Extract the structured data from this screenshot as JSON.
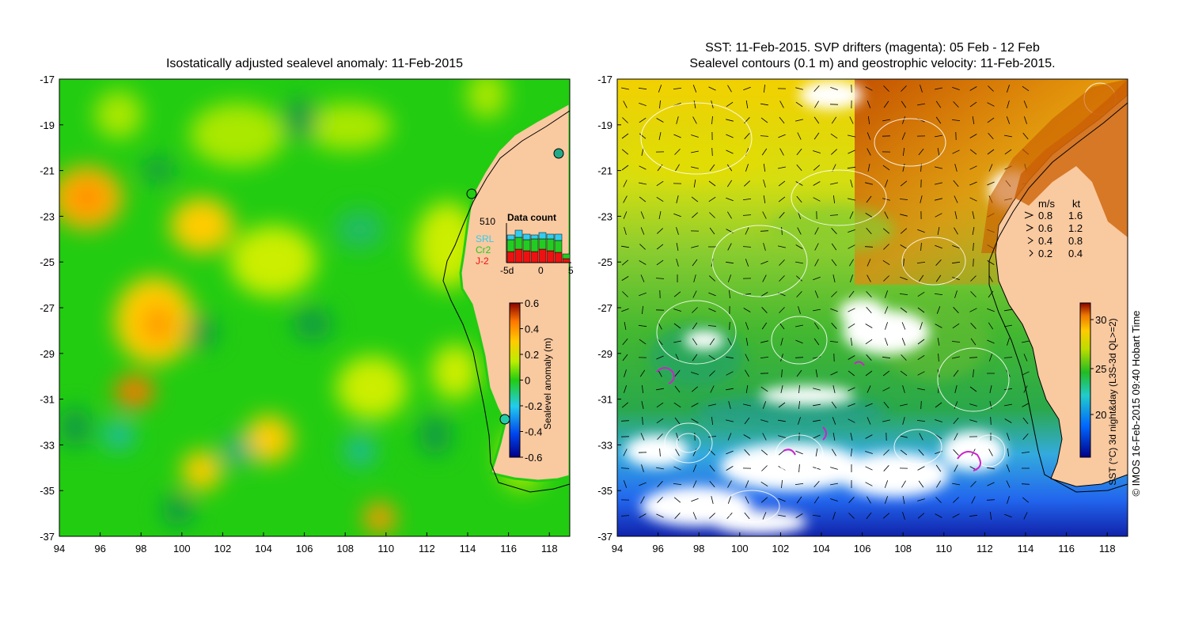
{
  "left_panel": {
    "title": "Isostatically adjusted sealevel anomaly: 11-Feb-2015",
    "x_ticks": [
      "94",
      "96",
      "98",
      "100",
      "102",
      "104",
      "106",
      "108",
      "110",
      "112",
      "114",
      "116",
      "118"
    ],
    "y_ticks": [
      "-17",
      "-19",
      "-21",
      "-23",
      "-25",
      "-27",
      "-29",
      "-31",
      "-33",
      "-35",
      "-37"
    ],
    "colorbar": {
      "label": "Sealevel anomaly (m)",
      "ticks": [
        "0.6",
        "0.4",
        "0.2",
        "0",
        "-0.2",
        "-0.4",
        "-0.6"
      ]
    },
    "data_count": {
      "title": "Data count",
      "max_label": "510",
      "x_ticks": [
        "-5d",
        "0",
        "5"
      ],
      "legend": [
        {
          "name": "SRL",
          "color": "#33ccee"
        },
        {
          "name": "Cr2",
          "color": "#22cc22"
        },
        {
          "name": "J-2",
          "color": "#ee1111"
        }
      ],
      "bars": [
        {
          "j2": 0.28,
          "cr2": 0.3,
          "srl": 0.12
        },
        {
          "j2": 0.34,
          "cr2": 0.3,
          "srl": 0.18
        },
        {
          "j2": 0.3,
          "cr2": 0.28,
          "srl": 0.14
        },
        {
          "j2": 0.28,
          "cr2": 0.32,
          "srl": 0.1
        },
        {
          "j2": 0.34,
          "cr2": 0.26,
          "srl": 0.16
        },
        {
          "j2": 0.3,
          "cr2": 0.3,
          "srl": 0.12
        },
        {
          "j2": 0.26,
          "cr2": 0.3,
          "srl": 0.16
        },
        {
          "j2": 0.1,
          "cr2": 0.12,
          "srl": 0.0
        }
      ]
    }
  },
  "right_panel": {
    "title_line1": "SST: 11-Feb-2015. SVP drifters (magenta): 05 Feb - 12 Feb",
    "title_line2": "Sealevel contours (0.1 m) and geostrophic velocity: 11-Feb-2015.",
    "x_ticks": [
      "94",
      "96",
      "98",
      "100",
      "102",
      "104",
      "106",
      "108",
      "110",
      "112",
      "114",
      "116",
      "118"
    ],
    "y_ticks": [
      "-17",
      "-19",
      "-21",
      "-23",
      "-25",
      "-27",
      "-29",
      "-31",
      "-33",
      "-35",
      "-37"
    ],
    "velocity_legend": {
      "header_ms": "m/s",
      "header_kt": "kt",
      "rows": [
        {
          "ms": "0.8",
          "kt": "1.6"
        },
        {
          "ms": "0.6",
          "kt": "1.2"
        },
        {
          "ms": "0.4",
          "kt": "0.8"
        },
        {
          "ms": "0.2",
          "kt": "0.4"
        }
      ]
    },
    "colorbar": {
      "label": "SST (°C) 3d night&day (L3S-3d QL>=2)",
      "ticks": [
        "30",
        "25",
        "20"
      ]
    }
  },
  "copyright": "© IMOS 16-Feb-2015 09:40 Hobart Time",
  "colors": {
    "land": "#f9c9a0",
    "sla_green": "#22cc11",
    "sst_green": "#33bb22"
  }
}
